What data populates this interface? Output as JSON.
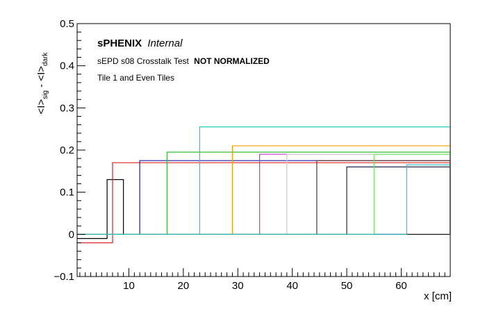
{
  "chart_data": {
    "type": "line",
    "annotations": {
      "experiment": "sPHENIX",
      "status": "Internal",
      "test_prefix": "sEPD s08 Crosstalk Test",
      "test_flag": "NOT NORMALIZED",
      "selection": "Tile 1 and Even Tiles"
    },
    "xlabel": "x [cm]",
    "ylabel": {
      "first": "<I>",
      "first_sub": "sig",
      "sep": " - ",
      "second": "<I>",
      "second_sub": "dark"
    },
    "xlim": [
      0.5,
      69
    ],
    "ylim": [
      -0.1,
      0.5
    ],
    "x_ticks": [
      10,
      20,
      30,
      40,
      50,
      60
    ],
    "x_tick_labels": [
      "10",
      "20",
      "30",
      "40",
      "50",
      "60"
    ],
    "y_ticks": [
      -0.1,
      0,
      0.1,
      0.2,
      0.3,
      0.4,
      0.5
    ],
    "y_tick_labels": [
      "−0.1",
      "0",
      "0.1",
      "0.2",
      "0.3",
      "0.4",
      "0.5"
    ],
    "grid": false,
    "legend": "none",
    "series": [
      {
        "color": "#000000",
        "x": [
          0.5,
          4,
          6,
          9,
          69
        ],
        "y": [
          -0.01,
          -0.01,
          0.13,
          0.0,
          0.0
        ]
      },
      {
        "color": "#dd2222",
        "x": [
          0.5,
          6,
          7,
          11,
          69
        ],
        "y": [
          -0.02,
          -0.02,
          0.17,
          0.17,
          0.0
        ]
      },
      {
        "color": "#1a1aaa",
        "x": [
          0.5,
          12,
          17,
          69
        ],
        "y": [
          0.0,
          0.175,
          0.175,
          0.0
        ]
      },
      {
        "color": "#33bb33",
        "x": [
          0.5,
          17,
          22,
          69
        ],
        "y": [
          0.0,
          0.195,
          0.195,
          0.0
        ]
      },
      {
        "color": "#22ccbb",
        "x": [
          0.5,
          23,
          28,
          69
        ],
        "y": [
          0.0,
          0.255,
          0.255,
          0.0
        ]
      },
      {
        "color": "#ff9900",
        "x": [
          0.5,
          29,
          33,
          69
        ],
        "y": [
          0.0,
          0.21,
          0.21,
          0.0
        ]
      },
      {
        "color": "#cc33cc",
        "x": [
          0.5,
          34,
          39,
          69
        ],
        "y": [
          0.0,
          0.19,
          0.19,
          0.0
        ]
      },
      {
        "color": "#cccccc",
        "x": [
          0.5,
          39,
          44,
          69
        ],
        "y": [
          0.0,
          0.19,
          0.19,
          0.0
        ]
      },
      {
        "color": "#663322",
        "x": [
          0.5,
          44.5,
          49,
          69
        ],
        "y": [
          0.0,
          0.175,
          0.175,
          0.0
        ]
      },
      {
        "color": "#222255",
        "x": [
          0.5,
          50,
          55,
          69
        ],
        "y": [
          0.0,
          0.16,
          0.16,
          0.0
        ]
      },
      {
        "color": "#66ee55",
        "x": [
          0.5,
          55,
          60,
          69
        ],
        "y": [
          0.0,
          0.19,
          0.19,
          0.0
        ]
      },
      {
        "color": "#33bbcc",
        "x": [
          0.5,
          61,
          66,
          69
        ],
        "y": [
          0.0,
          0.165,
          0.165,
          0.0
        ]
      }
    ]
  }
}
